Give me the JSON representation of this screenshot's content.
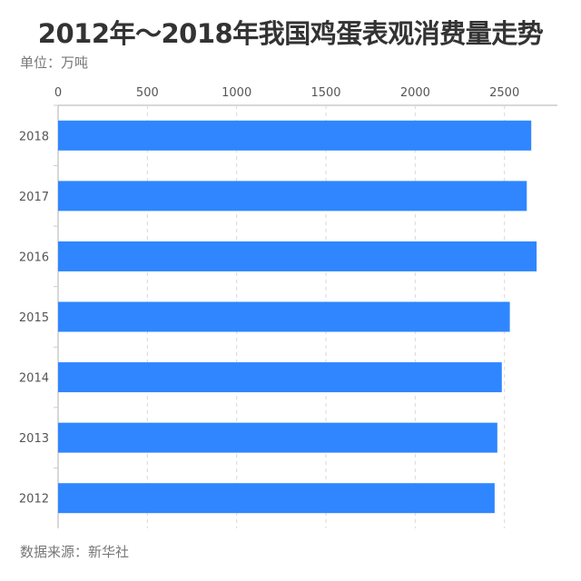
{
  "chart_data": {
    "type": "bar",
    "orientation": "horizontal",
    "title": "2012年～2018年我国鸡蛋表观消费量走势",
    "unit_label": "单位：万吨",
    "source": "数据来源：新华社",
    "categories": [
      "2018",
      "2017",
      "2016",
      "2015",
      "2014",
      "2013",
      "2012"
    ],
    "values": [
      2650,
      2625,
      2680,
      2530,
      2485,
      2460,
      2445
    ],
    "xlim": [
      0,
      2900
    ],
    "xticks": [
      0,
      500,
      1000,
      1500,
      2000,
      2500
    ],
    "x_axis_position": "top",
    "grid": true,
    "bar_color": "#2f86ff",
    "grid_color": "#d8d8d8"
  }
}
